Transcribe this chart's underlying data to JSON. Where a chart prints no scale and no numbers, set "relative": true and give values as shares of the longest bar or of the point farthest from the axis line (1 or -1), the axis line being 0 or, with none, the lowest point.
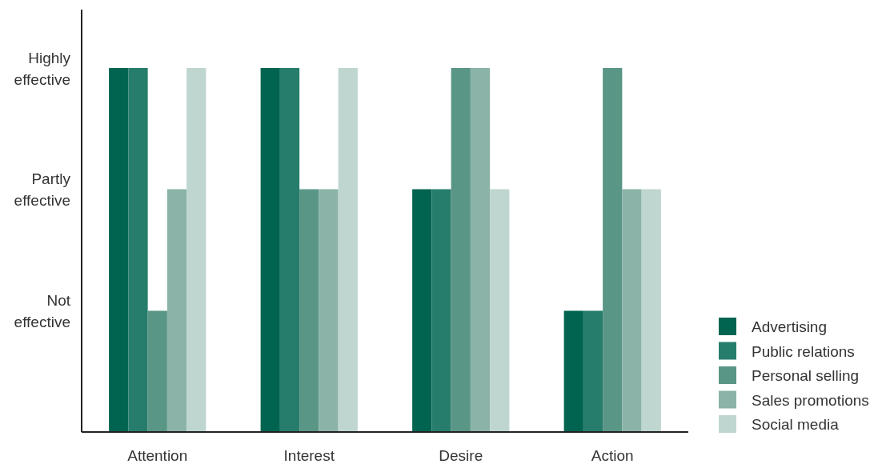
{
  "chart_data": {
    "type": "bar",
    "categories": [
      "Attention",
      "Interest",
      "Desire",
      "Action"
    ],
    "relative": true,
    "series": [
      {
        "name": "Advertising",
        "color": "#006450",
        "values": [
          1,
          1,
          0.667,
          0.333
        ]
      },
      {
        "name": "Public relations",
        "color": "#267d6c",
        "values": [
          1,
          1,
          0.667,
          0.333
        ]
      },
      {
        "name": "Personal selling",
        "color": "#5a9686",
        "values": [
          0.333,
          0.667,
          1,
          1
        ]
      },
      {
        "name": "Sales promotions",
        "color": "#8bb3a8",
        "values": [
          0.667,
          0.667,
          1,
          0.667
        ]
      },
      {
        "name": "Social media",
        "color": "#bfd6d0",
        "values": [
          1,
          1,
          0.667,
          0.667
        ]
      }
    ],
    "annotations": [
      "Not effective",
      "Partly effective",
      "Highly effective"
    ],
    "legend": "bottom right"
  }
}
